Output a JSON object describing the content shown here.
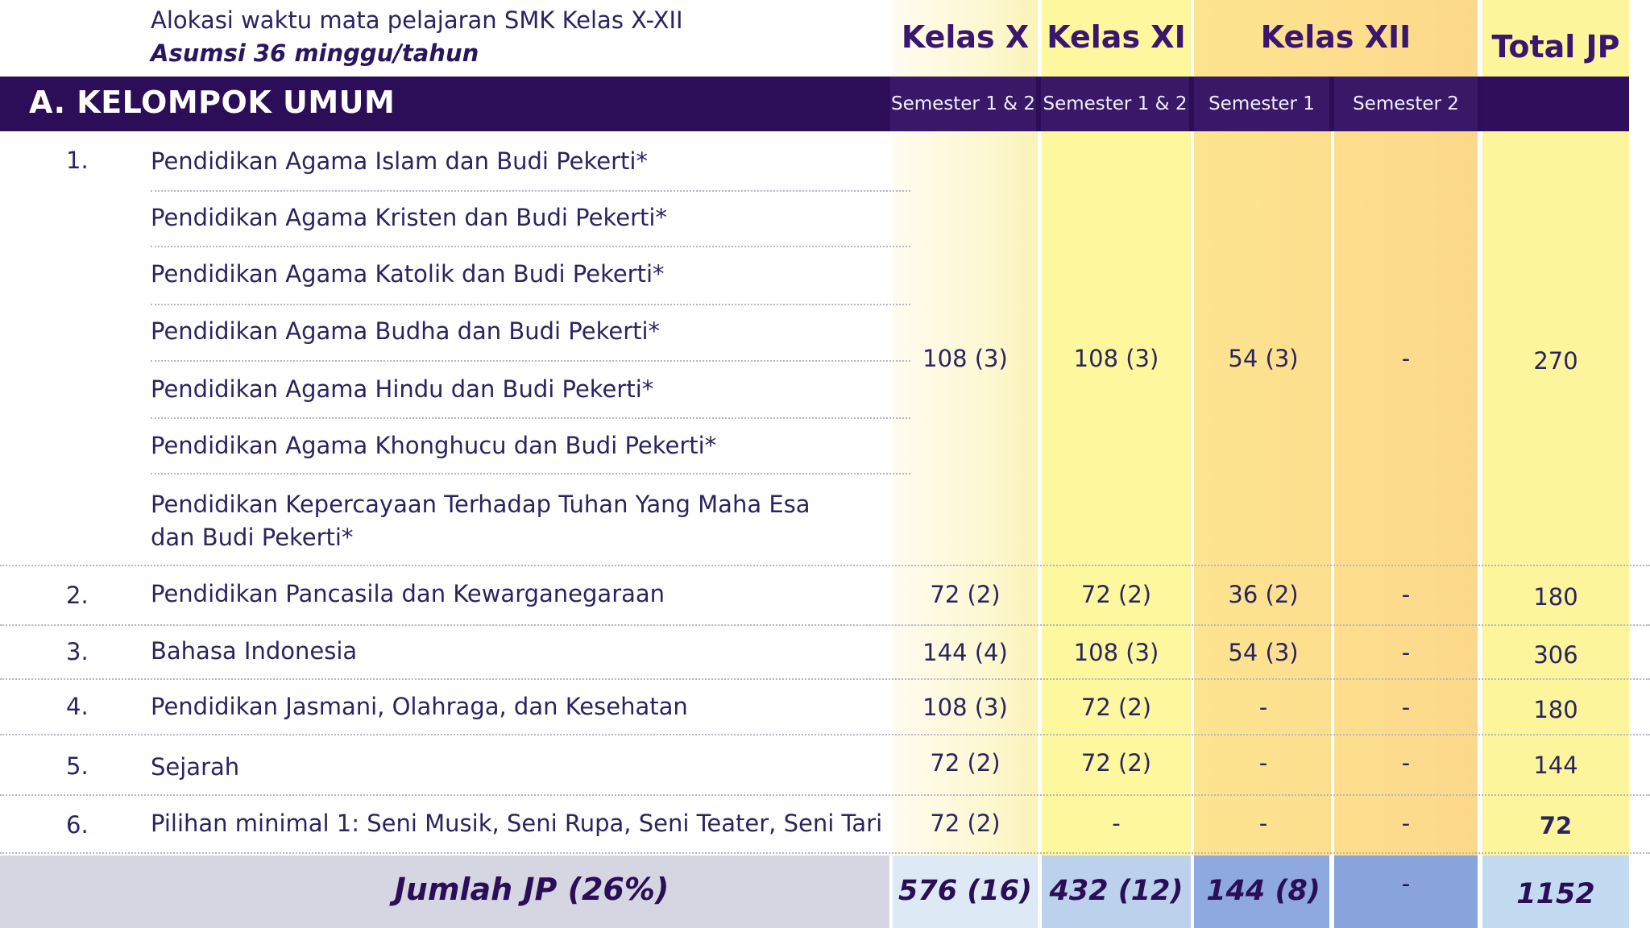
{
  "header": {
    "title": "Alokasi waktu mata pelajaran SMK Kelas X-XII",
    "subtitle": "Asumsi 36 minggu/tahun",
    "kelas_x": "Kelas X",
    "kelas_xi": "Kelas XI",
    "kelas_xii": "Kelas XII",
    "total": "Total JP"
  },
  "section": {
    "title": "A. KELOMPOK UMUM",
    "semesters": [
      "Semester 1 & 2",
      "Semester 1 & 2",
      "Semester 1",
      "Semester 2"
    ]
  },
  "row1": {
    "number": "1.",
    "subjects": [
      "Pendidikan Agama Islam dan Budi Pekerti*",
      "Pendidikan Agama Kristen dan Budi Pekerti*",
      "Pendidikan Agama Katolik dan Budi Pekerti*",
      "Pendidikan Agama Budha dan Budi Pekerti*",
      "Pendidikan Agama Hindu dan Budi Pekerti*",
      "Pendidikan Agama Khonghucu dan Budi Pekerti*",
      "Pendidikan Kepercayaan Terhadap Tuhan Yang Maha Esa",
      "dan Budi Pekerti*"
    ],
    "kelas_x": "108 (3)",
    "kelas_xi": "108 (3)",
    "kelas_xii_s1": "54 (3)",
    "kelas_xii_s2": "-",
    "total": "270"
  },
  "rows": [
    {
      "number": "2.",
      "subject": "Pendidikan Pancasila dan Kewarganegaraan",
      "kelas_x": "72 (2)",
      "kelas_xi": "72 (2)",
      "kelas_xii_s1": "36 (2)",
      "kelas_xii_s2": "-",
      "total": "180"
    },
    {
      "number": "3.",
      "subject": "Bahasa Indonesia",
      "kelas_x": "144 (4)",
      "kelas_xi": "108 (3)",
      "kelas_xii_s1": "54 (3)",
      "kelas_xii_s2": "-",
      "total": "306"
    },
    {
      "number": "4.",
      "subject": "Pendidikan Jasmani, Olahraga, dan Kesehatan",
      "kelas_x": "108 (3)",
      "kelas_xi": "72 (2)",
      "kelas_xii_s1": "-",
      "kelas_xii_s2": "-",
      "total": "180"
    },
    {
      "number": "5.",
      "subject": "Sejarah",
      "kelas_x": "72 (2)",
      "kelas_xi": "72 (2)",
      "kelas_xii_s1": "-",
      "kelas_xii_s2": "-",
      "total": "144"
    },
    {
      "number": "6.",
      "subject": "Pilihan minimal 1: Seni Musik, Seni Rupa, Seni Teater, Seni Tari",
      "kelas_x": "72 (2)",
      "kelas_xi": "-",
      "kelas_xii_s1": "-",
      "kelas_xii_s2": "-",
      "total": "72"
    }
  ],
  "footer": {
    "label": "Jumlah JP (26%)",
    "kelas_x": "576 (16)",
    "kelas_xi": "432 (12)",
    "kelas_xii_s1": "144 (8)",
    "kelas_xii_s2": "-",
    "total": "1152"
  },
  "colors": {
    "band": "#2b0e57",
    "kelas_xi_bg": "#fdf79e",
    "kelas_xii_bg": "#fcd98a",
    "total_bg": "#fcf59c"
  }
}
